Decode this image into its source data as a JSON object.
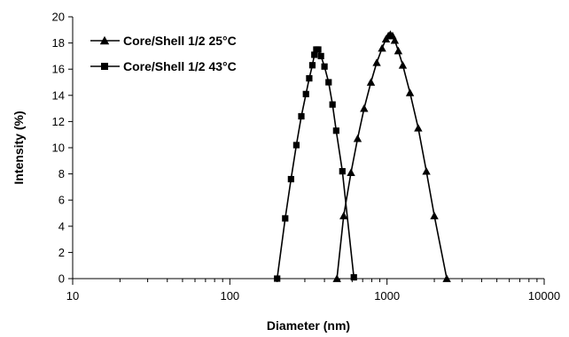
{
  "chart_data": {
    "type": "line",
    "x_scale": "log",
    "xlabel": "Diameter  (nm)",
    "ylabel": "Intensity (%)",
    "xlim": [
      10,
      10000
    ],
    "ylim": [
      0,
      20
    ],
    "x_ticks": [
      "10",
      "100",
      "1000",
      "10000"
    ],
    "y_ticks": [
      "0",
      "2",
      "4",
      "6",
      "8",
      "10",
      "12",
      "14",
      "16",
      "18",
      "20"
    ],
    "grid": false,
    "legend_position": "top-left",
    "series": [
      {
        "name": "Core/Shell 1/2  25°C",
        "marker": "triangle",
        "color": "#000000",
        "x": [
          480,
          530,
          590,
          650,
          715,
          790,
          860,
          930,
          985,
          1020,
          1050,
          1085,
          1120,
          1180,
          1260,
          1400,
          1580,
          1780,
          2000,
          2400
        ],
        "y": [
          0,
          4.8,
          8.1,
          10.7,
          13.0,
          15.0,
          16.5,
          17.6,
          18.3,
          18.55,
          18.65,
          18.55,
          18.2,
          17.4,
          16.3,
          14.2,
          11.5,
          8.2,
          4.8,
          0
        ]
      },
      {
        "name": "Core/Shell 1/2  43°C",
        "marker": "square",
        "color": "#000000",
        "x": [
          200,
          225,
          245,
          265,
          285,
          305,
          320,
          335,
          345,
          355,
          365,
          380,
          400,
          425,
          450,
          475,
          520,
          615
        ],
        "y": [
          0,
          4.6,
          7.6,
          10.2,
          12.4,
          14.1,
          15.3,
          16.3,
          17.1,
          17.5,
          17.5,
          17.0,
          16.2,
          15.0,
          13.3,
          11.3,
          8.2,
          0.1
        ]
      }
    ]
  }
}
